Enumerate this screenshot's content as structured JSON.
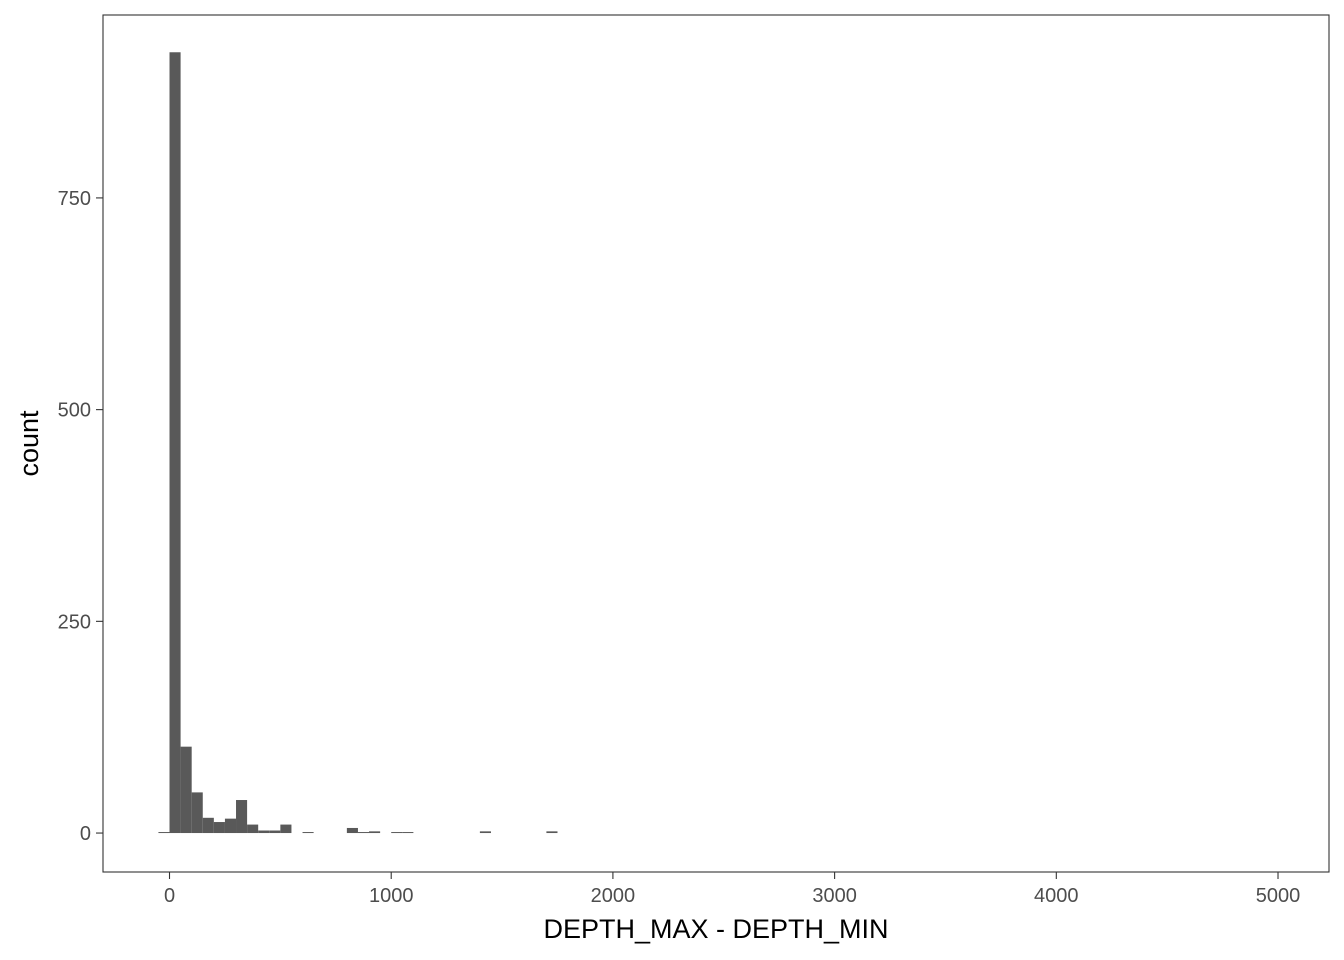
{
  "chart_data": {
    "type": "bar",
    "xlabel": "DEPTH_MAX - DEPTH_MIN",
    "ylabel": "count",
    "xlim": [
      -300,
      5230
    ],
    "ylim": [
      -46,
      966
    ],
    "x_ticks": [
      0,
      1000,
      2000,
      3000,
      4000,
      5000
    ],
    "x_tick_labels": [
      "0",
      "1000",
      "2000",
      "3000",
      "4000",
      "5000"
    ],
    "y_ticks": [
      0,
      250,
      500,
      750
    ],
    "y_tick_labels": [
      "0",
      "250",
      "500",
      "750"
    ],
    "grid": false,
    "bin_width": 50,
    "bins": [
      {
        "x": -25,
        "count": 1
      },
      {
        "x": 25,
        "count": 922
      },
      {
        "x": 75,
        "count": 102
      },
      {
        "x": 125,
        "count": 48
      },
      {
        "x": 175,
        "count": 18
      },
      {
        "x": 225,
        "count": 13
      },
      {
        "x": 275,
        "count": 17
      },
      {
        "x": 325,
        "count": 39
      },
      {
        "x": 375,
        "count": 10
      },
      {
        "x": 425,
        "count": 3
      },
      {
        "x": 475,
        "count": 3
      },
      {
        "x": 525,
        "count": 10
      },
      {
        "x": 625,
        "count": 1
      },
      {
        "x": 825,
        "count": 6
      },
      {
        "x": 875,
        "count": 1
      },
      {
        "x": 925,
        "count": 2
      },
      {
        "x": 1025,
        "count": 1
      },
      {
        "x": 1075,
        "count": 1
      },
      {
        "x": 1425,
        "count": 2
      },
      {
        "x": 1725,
        "count": 2
      }
    ],
    "bar_color": "#595959",
    "panel_border_color": "#333333"
  }
}
